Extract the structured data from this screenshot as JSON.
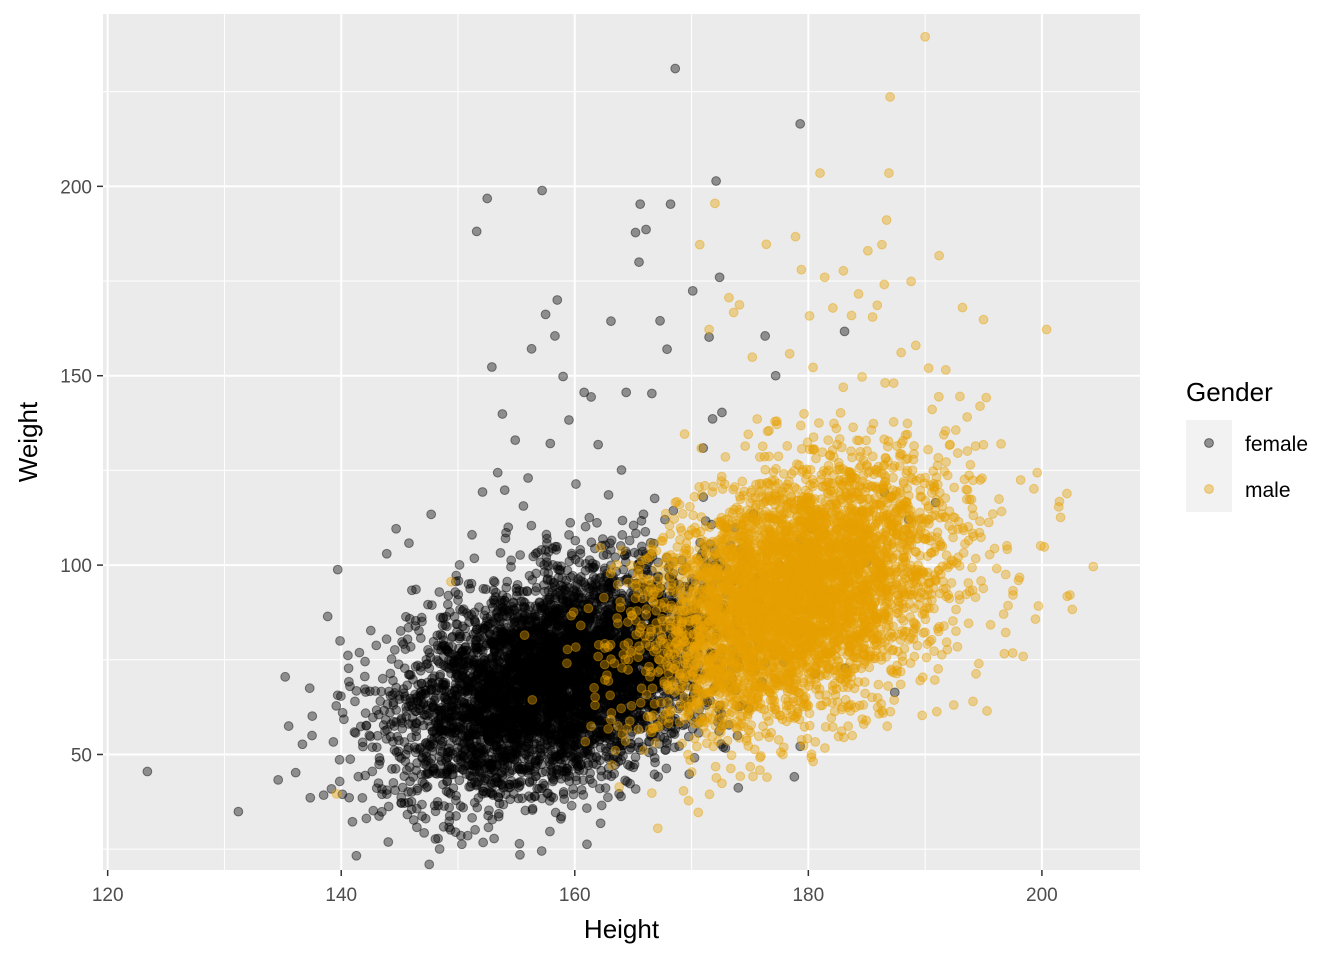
{
  "chart_data": {
    "type": "scatter",
    "title": "",
    "xlabel": "Height",
    "ylabel": "Weight",
    "xlim": [
      119.6,
      208.4
    ],
    "ylim": [
      19.5,
      245.5
    ],
    "x_ticks": [
      120,
      140,
      160,
      180,
      200
    ],
    "y_ticks": [
      50,
      100,
      150,
      200
    ],
    "grid": true,
    "legend": {
      "title": "Gender",
      "position": "right"
    },
    "point_opacity": 0.4,
    "series": [
      {
        "name": "female",
        "color": "#000000",
        "generated_center": {
          "x": 158.5,
          "y": 70
        },
        "points": [
          [
            123.4,
            45.5
          ],
          [
            134.6,
            43.3
          ],
          [
            135.2,
            70.5
          ],
          [
            135.5,
            57.5
          ],
          [
            136.1,
            45.2
          ],
          [
            137.3,
            67.5
          ],
          [
            137.5,
            55.0
          ],
          [
            139.7,
            98.8
          ],
          [
            139.9,
            80.0
          ],
          [
            140.1,
            39.5
          ],
          [
            141.3,
            66.8
          ],
          [
            142.1,
            66.5
          ],
          [
            143.0,
            78.8
          ],
          [
            143.9,
            103.0
          ],
          [
            144.7,
            109.6
          ],
          [
            145.8,
            105.8
          ],
          [
            146.4,
            93.6
          ],
          [
            147.1,
            29.3
          ],
          [
            147.4,
            41.5
          ],
          [
            147.7,
            113.4
          ],
          [
            148.3,
            36.5
          ],
          [
            149.3,
            87.6
          ],
          [
            150.9,
            95.0
          ],
          [
            151.2,
            108.0
          ],
          [
            151.6,
            188.1
          ],
          [
            152.1,
            119.3
          ],
          [
            152.5,
            196.8
          ],
          [
            152.9,
            152.3
          ],
          [
            153.4,
            124.4
          ],
          [
            153.8,
            139.9
          ],
          [
            154.0,
            119.8
          ],
          [
            154.3,
            110.0
          ],
          [
            154.9,
            133.0
          ],
          [
            155.2,
            41.4
          ],
          [
            155.6,
            115.6
          ],
          [
            156.0,
            123.0
          ],
          [
            156.3,
            157.1
          ],
          [
            156.6,
            38.9
          ],
          [
            157.2,
            198.9
          ],
          [
            157.5,
            166.2
          ],
          [
            157.9,
            132.1
          ],
          [
            158.3,
            160.5
          ],
          [
            158.5,
            170.0
          ],
          [
            158.8,
            33.0
          ],
          [
            159.0,
            149.8
          ],
          [
            159.5,
            138.3
          ],
          [
            160.1,
            121.4
          ],
          [
            160.8,
            145.6
          ],
          [
            161.4,
            144.4
          ],
          [
            162.0,
            131.8
          ],
          [
            162.4,
            106.9
          ],
          [
            163.1,
            164.4
          ],
          [
            164.0,
            125.1
          ],
          [
            164.4,
            145.6
          ],
          [
            165.2,
            187.8
          ],
          [
            165.5,
            180.0
          ],
          [
            165.6,
            195.3
          ],
          [
            166.1,
            188.6
          ],
          [
            166.6,
            145.3
          ],
          [
            167.3,
            164.5
          ],
          [
            167.9,
            157.0
          ],
          [
            168.6,
            231.1
          ],
          [
            168.2,
            195.3
          ],
          [
            170.1,
            172.4
          ],
          [
            171.0,
            130.9
          ],
          [
            171.5,
            160.2
          ],
          [
            171.8,
            138.6
          ],
          [
            172.1,
            201.4
          ],
          [
            172.4,
            176.0
          ],
          [
            172.6,
            140.3
          ],
          [
            174.0,
            41.2
          ],
          [
            175.3,
            113.5
          ],
          [
            176.3,
            160.5
          ],
          [
            177.2,
            150.0
          ],
          [
            179.3,
            216.5
          ],
          [
            182.0,
            104.5
          ],
          [
            183.1,
            161.7
          ],
          [
            186.5,
            119.2
          ],
          [
            188.6,
            112.0
          ],
          [
            190.9,
            116.5
          ],
          [
            172.9,
            51.7
          ],
          [
            174.9,
            62.2
          ],
          [
            176.9,
            88.6
          ],
          [
            178.8,
            44.1
          ],
          [
            180.6,
            71.3
          ],
          [
            180.2,
            109.7
          ],
          [
            185.0,
            100.7
          ],
          [
            187.4,
            66.4
          ],
          [
            169.8,
            44.8
          ],
          [
            173.2,
            57.8
          ]
        ]
      },
      {
        "name": "male",
        "color": "#e69f00",
        "generated_center": {
          "x": 178.5,
          "y": 92
        },
        "points": [
          [
            139.6,
            39.6
          ],
          [
            149.4,
            95.6
          ],
          [
            155.7,
            81.5
          ],
          [
            160.9,
            53.4
          ],
          [
            163.8,
            41.4
          ],
          [
            166.6,
            39.8
          ],
          [
            168.3,
            61.6
          ],
          [
            169.4,
            134.6
          ],
          [
            170.7,
            184.6
          ],
          [
            171.5,
            162.2
          ],
          [
            172.0,
            195.5
          ],
          [
            172.6,
            42.4
          ],
          [
            173.2,
            170.6
          ],
          [
            173.6,
            166.7
          ],
          [
            174.1,
            168.7
          ],
          [
            175.2,
            154.9
          ],
          [
            176.4,
            184.7
          ],
          [
            177.3,
            138.0
          ],
          [
            178.4,
            155.8
          ],
          [
            178.9,
            186.7
          ],
          [
            179.4,
            178.0
          ],
          [
            180.1,
            165.8
          ],
          [
            180.4,
            152.2
          ],
          [
            181.0,
            203.5
          ],
          [
            181.4,
            176.0
          ],
          [
            182.1,
            167.9
          ],
          [
            183.0,
            177.7
          ],
          [
            183.7,
            165.9
          ],
          [
            184.3,
            171.6
          ],
          [
            184.6,
            149.7
          ],
          [
            185.1,
            183.0
          ],
          [
            185.5,
            165.5
          ],
          [
            185.9,
            168.6
          ],
          [
            186.3,
            184.6
          ],
          [
            186.5,
            174.1
          ],
          [
            186.7,
            191.1
          ],
          [
            186.9,
            203.5
          ],
          [
            187.0,
            223.6
          ],
          [
            187.3,
            137.8
          ],
          [
            188.1,
            132.8
          ],
          [
            188.8,
            174.9
          ],
          [
            189.2,
            158.0
          ],
          [
            190.0,
            239.5
          ],
          [
            190.3,
            152.0
          ],
          [
            190.6,
            141.1
          ],
          [
            191.2,
            181.7
          ],
          [
            191.6,
            134.4
          ],
          [
            192.4,
            112.7
          ],
          [
            193.2,
            168.0
          ],
          [
            193.6,
            139.1
          ],
          [
            194.1,
            122.4
          ],
          [
            194.6,
            74.0
          ],
          [
            195.0,
            164.8
          ],
          [
            195.3,
            61.5
          ],
          [
            195.8,
            113.5
          ],
          [
            196.5,
            132.0
          ],
          [
            197.1,
            89.3
          ],
          [
            197.5,
            76.8
          ],
          [
            198.4,
            75.9
          ],
          [
            199.6,
            124.4
          ],
          [
            199.7,
            89.2
          ],
          [
            199.9,
            105.1
          ],
          [
            200.2,
            104.8
          ],
          [
            200.4,
            162.2
          ],
          [
            201.5,
            116.8
          ],
          [
            201.6,
            112.6
          ],
          [
            202.4,
            92.1
          ],
          [
            202.6,
            88.3
          ],
          [
            204.4,
            99.6
          ],
          [
            191.0,
            61.3
          ],
          [
            193.8,
            93.1
          ],
          [
            198.0,
            96.0
          ],
          [
            196.9,
            82.2
          ],
          [
            189.8,
            70.4
          ],
          [
            194.1,
            64.0
          ]
        ]
      }
    ]
  }
}
